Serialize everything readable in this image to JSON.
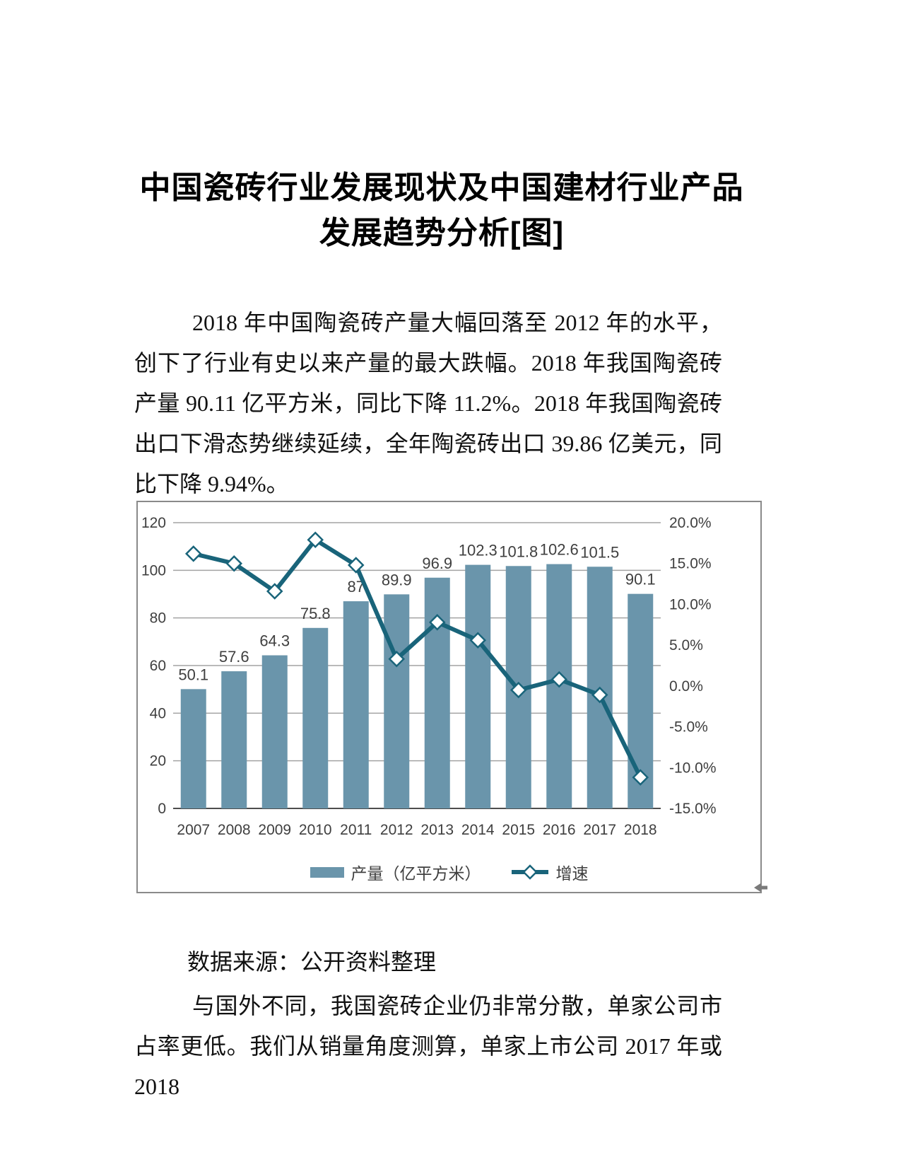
{
  "page": {
    "title": "中国瓷砖行业发展现状及中国建材行业产品发展趋势分析[图]",
    "intro_paragraph": "2018 年中国陶瓷砖产量大幅回落至 2012 年的水平，创下了行业有史以来产量的最大跌幅。2018 年我国陶瓷砖产量 90.11 亿平方米，同比下降 11.2%。2018 年我国陶瓷砖出口下滑态势继续延续，全年陶瓷砖出口 39.86 亿美元，同比下降 9.94%。",
    "data_source_line": "数据来源：公开资料整理",
    "closing_paragraph": "与国外不同，我国瓷砖企业仍非常分散，单家公司市占率更低。我们从销量角度测算，单家上市公司 2017 年或 2018"
  },
  "chart_data": {
    "type": "bar",
    "subtype": "bar+line combo, dual axis",
    "categories": [
      "2007",
      "2008",
      "2009",
      "2010",
      "2011",
      "2012",
      "2013",
      "2014",
      "2015",
      "2016",
      "2017",
      "2018"
    ],
    "series": [
      {
        "name": "产量（亿平方米）",
        "type": "bar",
        "axis": "left",
        "color": "#6A95AB",
        "values": [
          50.1,
          57.6,
          64.3,
          75.8,
          87,
          89.9,
          96.9,
          102.3,
          101.8,
          102.6,
          101.5,
          90.1
        ],
        "value_labels": [
          "50.1",
          "57.6",
          "64.3",
          "75.8",
          "87",
          "89.9",
          "96.9",
          "102.3",
          "101.8",
          "102.6",
          "101.5",
          "90.1"
        ]
      },
      {
        "name": "增速",
        "type": "line",
        "axis": "right",
        "color": "#19647A",
        "marker": "diamond",
        "values_percent": [
          16.2,
          15.0,
          11.6,
          17.9,
          14.8,
          3.3,
          7.8,
          5.6,
          -0.5,
          0.8,
          -1.1,
          -11.2
        ]
      }
    ],
    "left_axis": {
      "min": 0,
      "max": 120,
      "step": 20,
      "tick_labels": [
        "120",
        "100",
        "80",
        "60",
        "40",
        "20",
        "0"
      ]
    },
    "right_axis": {
      "min": -15,
      "max": 20,
      "step": 5,
      "tick_labels": [
        "20.0%",
        "15.0%",
        "10.0%",
        "5.0%",
        "0.0%",
        "-5.0%",
        "-10.0%",
        "-15.0%"
      ]
    },
    "grid": "horizontal",
    "legend_position": "bottom",
    "text_color": "#3F3F3F",
    "grid_color": "#A3A3A3"
  }
}
